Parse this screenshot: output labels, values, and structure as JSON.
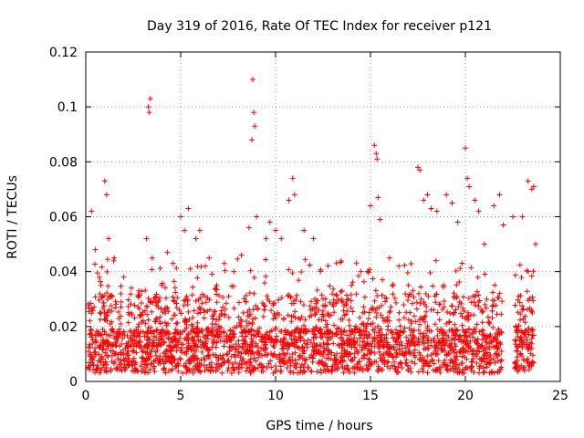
{
  "chart_data": {
    "type": "scatter",
    "title": "Day 319 of 2016, Rate Of TEC Index for receiver p121",
    "xlabel": "GPS time / hours",
    "ylabel": "ROTI / TECUs",
    "xlim": [
      0,
      25
    ],
    "ylim": [
      0,
      0.12
    ],
    "xticks": [
      0,
      5,
      10,
      15,
      20,
      25
    ],
    "xtick_labels": [
      "0",
      "5",
      "10",
      "15",
      "20",
      "25"
    ],
    "yticks": [
      0,
      0.02,
      0.04,
      0.06,
      0.08,
      0.1,
      0.12
    ],
    "ytick_labels": [
      "0",
      "0.02",
      "0.04",
      "0.06",
      "0.08",
      "0.1",
      "0.12"
    ],
    "grid": true,
    "marker": "+",
    "series": [
      {
        "color": "#ff0000",
        "x": [
          0.3,
          0.5,
          0.8,
          1.0,
          1.1,
          1.2,
          1.3,
          1.5,
          2.0,
          2.4,
          2.8,
          3.2,
          3.3,
          3.35,
          3.4,
          3.5,
          3.7,
          4.0,
          4.3,
          4.6,
          5.0,
          5.2,
          5.4,
          5.5,
          5.8,
          6.0,
          6.3,
          6.5,
          6.9,
          7.3,
          7.8,
          8.2,
          8.6,
          8.75,
          8.8,
          8.85,
          8.9,
          9.0,
          9.5,
          9.7,
          10.0,
          10.3,
          10.7,
          10.9,
          11.0,
          11.5,
          12.0,
          12.5,
          13.0,
          13.5,
          14.0,
          14.5,
          15.0,
          15.2,
          15.3,
          15.35,
          15.4,
          15.5,
          16.0,
          16.5,
          17.0,
          17.5,
          17.6,
          17.8,
          18.0,
          18.2,
          18.5,
          19.0,
          19.3,
          19.6,
          20.0,
          20.1,
          20.2,
          20.5,
          20.7,
          21.0,
          21.5,
          21.8,
          22.0,
          22.5,
          23.0,
          23.3,
          23.5,
          23.6,
          23.7
        ],
        "y": [
          0.062,
          0.048,
          0.035,
          0.073,
          0.068,
          0.052,
          0.031,
          0.045,
          0.038,
          0.034,
          0.033,
          0.052,
          0.1,
          0.098,
          0.103,
          0.045,
          0.029,
          0.035,
          0.047,
          0.043,
          0.06,
          0.055,
          0.063,
          0.041,
          0.052,
          0.055,
          0.042,
          0.045,
          0.035,
          0.043,
          0.04,
          0.046,
          0.056,
          0.088,
          0.11,
          0.098,
          0.093,
          0.06,
          0.052,
          0.058,
          0.055,
          0.052,
          0.066,
          0.074,
          0.068,
          0.055,
          0.052,
          0.03,
          0.028,
          0.033,
          0.035,
          0.04,
          0.064,
          0.086,
          0.083,
          0.081,
          0.067,
          0.059,
          0.045,
          0.042,
          0.035,
          0.078,
          0.077,
          0.066,
          0.068,
          0.063,
          0.062,
          0.068,
          0.065,
          0.058,
          0.085,
          0.074,
          0.071,
          0.066,
          0.062,
          0.05,
          0.064,
          0.068,
          0.057,
          0.06,
          0.06,
          0.073,
          0.07,
          0.071,
          0.05
        ]
      }
    ]
  }
}
